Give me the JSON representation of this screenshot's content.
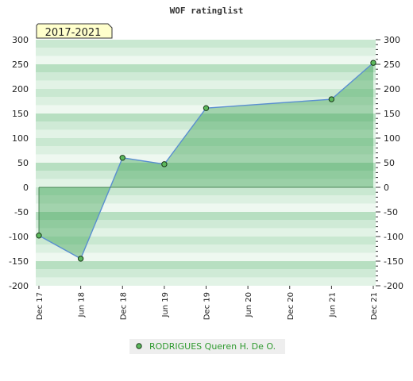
{
  "chart_data": {
    "type": "area",
    "title": "WOF ratinglist",
    "period_label": "2017-2021",
    "xlabel": "",
    "ylabel": "",
    "ylim": [
      -200,
      300
    ],
    "y_ticks": [
      300,
      250,
      200,
      150,
      100,
      50,
      0,
      -50,
      -100,
      -150,
      -200
    ],
    "x_ticks": [
      "Dec 17",
      "Jun 18",
      "Dec 18",
      "Jun 19",
      "Dec 19",
      "Jun 20",
      "Dec 20",
      "Jun 21",
      "Dec 21"
    ],
    "x_range": [
      "Dec 17",
      "Dec 21"
    ],
    "series": [
      {
        "name": "RODRIGUES Queren H. De O.",
        "x": [
          "Dec 17",
          "Jun 18",
          "Dec 18",
          "Jun 19",
          "Dec 19",
          "Jun 21",
          "Dec 21"
        ],
        "values": [
          -98,
          -145,
          60,
          47,
          161,
          179,
          253
        ]
      }
    ],
    "legend_position": "bottom-center",
    "grid": true,
    "colors": {
      "line": "#5a8fd0",
      "area": "#3aa050",
      "marker": "#5cb85c",
      "band_dark": "#b9dfc3",
      "band_light": "#eef8f0",
      "legend_text": "#2f9a2f",
      "period_bg": "#ffffcc"
    }
  }
}
